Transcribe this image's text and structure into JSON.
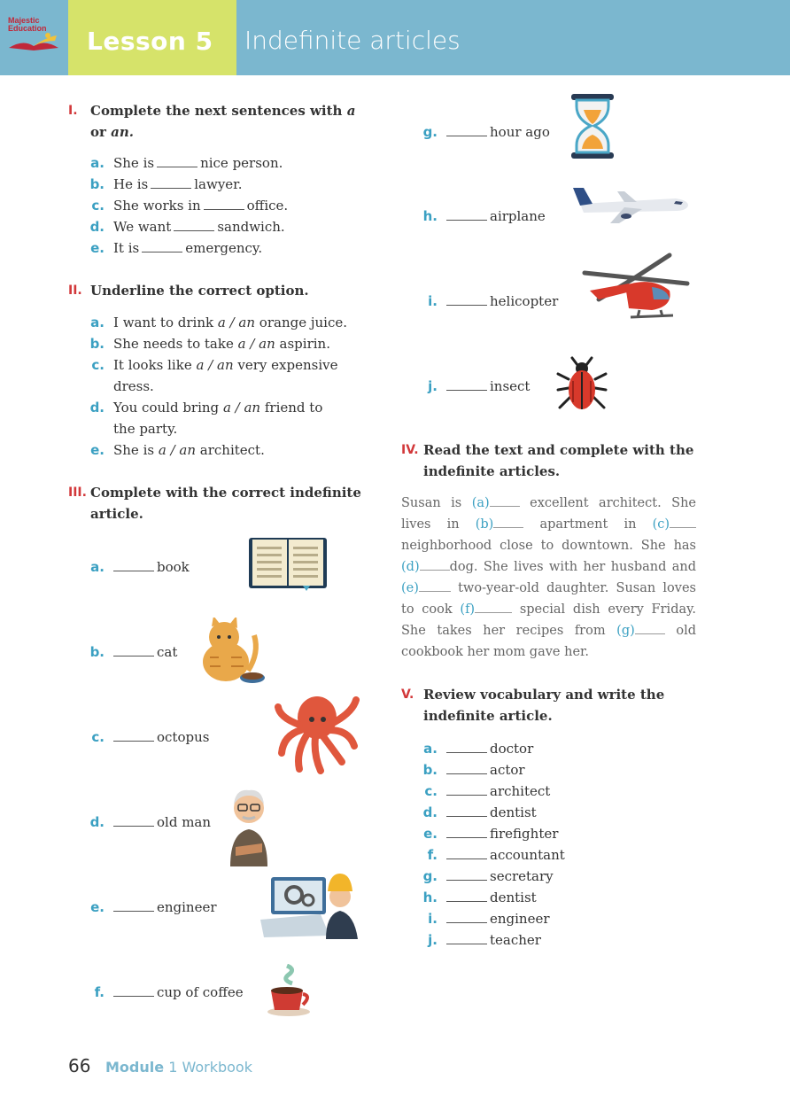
{
  "header": {
    "logo_line1": "Majestic",
    "logo_line2": "Education",
    "lesson_label": "Lesson 5",
    "lesson_title": "Indefinite articles"
  },
  "section1": {
    "number": "I.",
    "title_line1": "Complete the next sentences with",
    "title_a": "a",
    "title_line2_pre": "or",
    "title_an": "an.",
    "items": [
      {
        "letter": "a.",
        "pre": "She is",
        "post": "nice person."
      },
      {
        "letter": "b.",
        "pre": "He is",
        "post": "lawyer."
      },
      {
        "letter": "c.",
        "pre": "She works in",
        "post": "office."
      },
      {
        "letter": "d.",
        "pre": "We want",
        "post": "sandwich."
      },
      {
        "letter": "e.",
        "pre": "It is",
        "post": "emergency."
      }
    ]
  },
  "section2": {
    "number": "II.",
    "title": "Underline the correct option.",
    "items": [
      {
        "letter": "a.",
        "pre": "I want to drink",
        "opt": "a / an",
        "post": "orange juice.",
        "line2": ""
      },
      {
        "letter": "b.",
        "pre": "She needs to take",
        "opt": "a / an",
        "post": "aspirin.",
        "line2": ""
      },
      {
        "letter": "c.",
        "pre": "It looks like",
        "opt": "a / an",
        "post": "very expensive",
        "line2": "dress."
      },
      {
        "letter": "d.",
        "pre": "You could bring",
        "opt": "a / an",
        "post": "friend to",
        "line2": "the party."
      },
      {
        "letter": "e.",
        "pre": "She is",
        "opt": "a / an",
        "post": "architect.",
        "line2": ""
      }
    ]
  },
  "section3": {
    "number": "III.",
    "title_line1": "Complete with the correct indefinite",
    "title_line2": "article.",
    "items": [
      {
        "letter": "a.",
        "word": "book",
        "icon": "book-icon"
      },
      {
        "letter": "b.",
        "word": "cat",
        "icon": "cat-icon"
      },
      {
        "letter": "c.",
        "word": "octopus",
        "icon": "octopus-icon"
      },
      {
        "letter": "d.",
        "word": "old man",
        "icon": "old-man-icon"
      },
      {
        "letter": "e.",
        "word": "engineer",
        "icon": "engineer-icon"
      },
      {
        "letter": "f.",
        "word": "cup of coffee",
        "icon": "coffee-cup-icon"
      },
      {
        "letter": "g.",
        "word": "hour ago",
        "icon": "hourglass-icon"
      },
      {
        "letter": "h.",
        "word": "airplane",
        "icon": "airplane-icon"
      },
      {
        "letter": "i.",
        "word": "helicopter",
        "icon": "helicopter-icon"
      },
      {
        "letter": "j.",
        "word": "insect",
        "icon": "insect-icon"
      }
    ]
  },
  "section4": {
    "number": "IV.",
    "title_line1": "Read the text and complete with the",
    "title_line2": "indefinite articles.",
    "paragraph": [
      {
        "t": "Susan is "
      },
      {
        "m": "(a)"
      },
      {
        "b": 34
      },
      {
        "t": " excellent architect. She lives in "
      },
      {
        "m": "(b)"
      },
      {
        "b": 34
      },
      {
        "t": " apartment in "
      },
      {
        "m": "(c)"
      },
      {
        "b": 30
      },
      {
        "t": " neighborhood close to downtown. She has "
      },
      {
        "m": "(d)"
      },
      {
        "b": 34
      },
      {
        "t": "dog. She lives with her husband and "
      },
      {
        "m": "(e)"
      },
      {
        "b": 36
      },
      {
        "t": " two-year-old daughter. Susan loves to cook "
      },
      {
        "m": "(f)"
      },
      {
        "b": 42
      },
      {
        "t": " special dish every Friday. She takes her recipes from "
      },
      {
        "m": "(g)"
      },
      {
        "b": 34
      },
      {
        "t": " old cookbook her mom gave her."
      }
    ]
  },
  "section5": {
    "number": "V.",
    "title_line1": "Review vocabulary and write the",
    "title_line2": "indefinite article.",
    "items": [
      {
        "letter": "a.",
        "word": "doctor"
      },
      {
        "letter": "b.",
        "word": "actor"
      },
      {
        "letter": "c.",
        "word": "architect"
      },
      {
        "letter": "d.",
        "word": "dentist"
      },
      {
        "letter": "e.",
        "word": "firefighter"
      },
      {
        "letter": "f.",
        "word": "accountant"
      },
      {
        "letter": "g.",
        "word": "secretary"
      },
      {
        "letter": "h.",
        "word": "dentist"
      },
      {
        "letter": "i.",
        "word": "engineer"
      },
      {
        "letter": "j.",
        "word": "teacher"
      }
    ]
  },
  "footer": {
    "page": "66",
    "module_label": "Module",
    "module_rest": "1 Workbook"
  },
  "colors": {
    "header_blue": "#7bb7cf",
    "lesson_green": "#d6e36a",
    "roman_red": "#d2383a",
    "letter_blue": "#3ba0c2"
  }
}
